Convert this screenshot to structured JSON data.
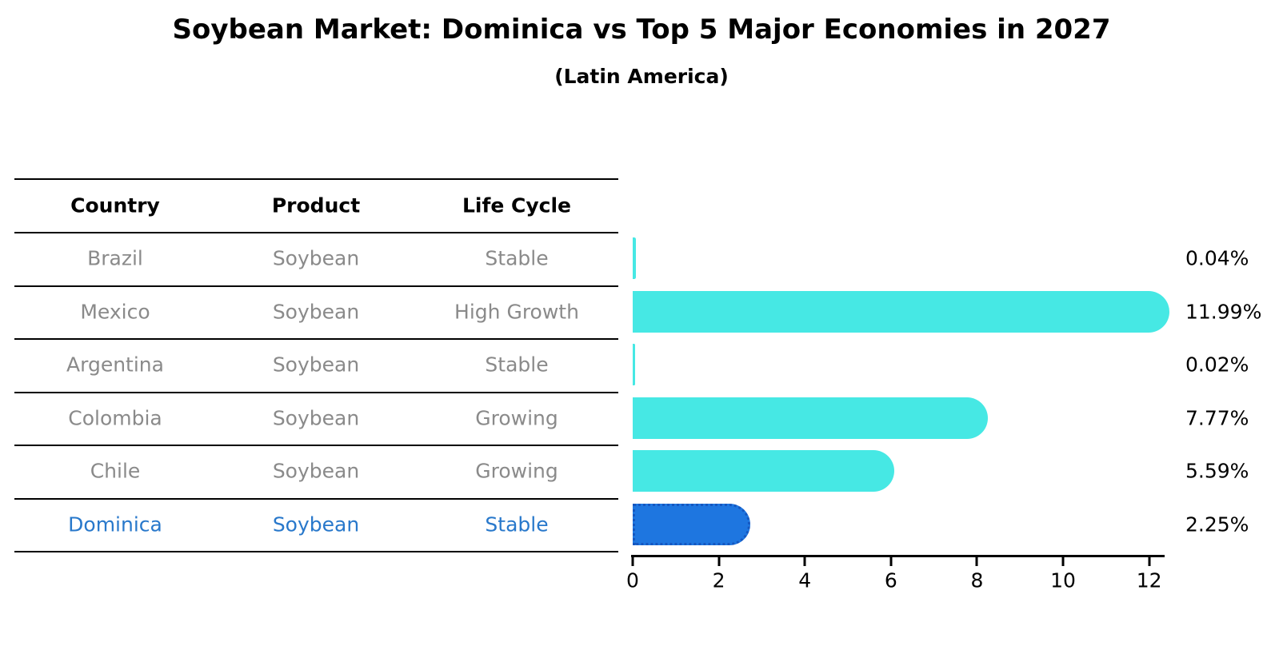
{
  "title": "Soybean Market: Dominica vs Top 5 Major Economies in 2027",
  "subtitle": "(Latin America)",
  "table": {
    "columns": [
      "Country",
      "Product",
      "Life Cycle"
    ],
    "rows": [
      {
        "country": "Brazil",
        "product": "Soybean",
        "life_cycle": "Stable",
        "highlight": false
      },
      {
        "country": "Mexico",
        "product": "Soybean",
        "life_cycle": "High Growth",
        "highlight": false
      },
      {
        "country": "Argentina",
        "product": "Soybean",
        "life_cycle": "Stable",
        "highlight": false
      },
      {
        "country": "Colombia",
        "product": "Soybean",
        "life_cycle": "Growing",
        "highlight": false
      },
      {
        "country": "Chile",
        "product": "Soybean",
        "life_cycle": "Growing",
        "highlight": false
      },
      {
        "country": "Dominica",
        "product": "Soybean",
        "life_cycle": "Stable",
        "highlight": true
      }
    ]
  },
  "chart_data": {
    "type": "bar",
    "orientation": "horizontal",
    "title": "Soybean Market: Dominica vs Top 5 Major Economies in 2027",
    "subtitle": "(Latin America)",
    "categories": [
      "Brazil",
      "Mexico",
      "Argentina",
      "Colombia",
      "Chile",
      "Dominica"
    ],
    "values": [
      0.04,
      11.99,
      0.02,
      7.77,
      5.59,
      2.25
    ],
    "value_labels": [
      "0.04%",
      "11.99%",
      "0.02%",
      "7.77%",
      "5.59%",
      "2.25%"
    ],
    "xlabel": "",
    "ylabel": "",
    "xlim": [
      0,
      12.4
    ],
    "x_ticks": [
      0,
      2,
      4,
      6,
      8,
      10,
      12
    ],
    "grid": false,
    "legend": false,
    "highlight_category": "Dominica",
    "colors": {
      "default_bar": "#46E8E4",
      "highlight_bar": "#1E76E0",
      "highlight_bar_border": "#1557C0",
      "row_text": "#8a8a8a",
      "highlight_text": "#2878CB",
      "header_text": "#000000",
      "axis": "#000000"
    }
  }
}
